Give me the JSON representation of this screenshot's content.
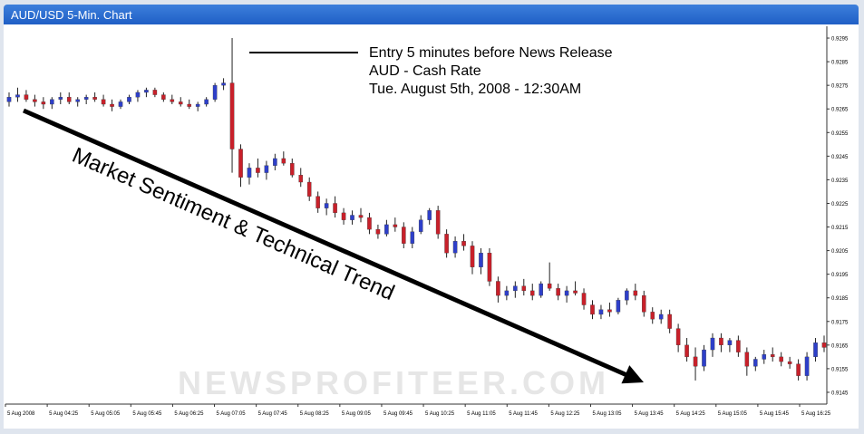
{
  "window": {
    "title": "AUD/USD 5-Min. Chart"
  },
  "annotation": {
    "lines": [
      "Entry 5 minutes before News Release",
      "AUD - Cash Rate",
      "Tue. August 5th, 2008 - 12:30AM"
    ]
  },
  "trend_label": "Market Sentiment & Technical Trend",
  "watermark": "NEWSPROFITEER.COM",
  "colors": {
    "bull": "#2e3fc9",
    "bear": "#c8202a",
    "grid": "#ffffff",
    "text": "#000000"
  },
  "chart_data": {
    "type": "candlestick",
    "title": "AUD/USD 5-Min. Chart",
    "ylim": [
      0.914,
      0.93
    ],
    "y_ticks": [
      "0.9295",
      "0.9285",
      "0.9275",
      "0.9265",
      "0.9255",
      "0.9245",
      "0.9235",
      "0.9225",
      "0.9215",
      "0.9205",
      "0.9195",
      "0.9185",
      "0.9175",
      "0.9165",
      "0.9155",
      "0.9145"
    ],
    "x_ticks": [
      "5 Aug 2008",
      "5 Aug 04:25",
      "5 Aug 05:05",
      "5 Aug 05:45",
      "5 Aug 06:25",
      "5 Aug 07:05",
      "5 Aug 07:45",
      "5 Aug 08:25",
      "5 Aug 09:05",
      "5 Aug 09:45",
      "5 Aug 10:25",
      "5 Aug 11:05",
      "5 Aug 11:45",
      "5 Aug 12:25",
      "5 Aug 13:05",
      "5 Aug 13:45",
      "5 Aug 14:25",
      "5 Aug 15:05",
      "5 Aug 15:45",
      "5 Aug 16:25"
    ],
    "ohlc": [
      [
        0.9268,
        0.9272,
        0.9266,
        0.927
      ],
      [
        0.927,
        0.9274,
        0.9268,
        0.9271
      ],
      [
        0.9271,
        0.9273,
        0.9268,
        0.9269
      ],
      [
        0.9269,
        0.9271,
        0.9266,
        0.9268
      ],
      [
        0.9268,
        0.927,
        0.9265,
        0.9267
      ],
      [
        0.9267,
        0.927,
        0.9265,
        0.9269
      ],
      [
        0.9269,
        0.9272,
        0.9267,
        0.927
      ],
      [
        0.927,
        0.9272,
        0.9267,
        0.9268
      ],
      [
        0.9268,
        0.927,
        0.9266,
        0.9269
      ],
      [
        0.9269,
        0.9271,
        0.9267,
        0.927
      ],
      [
        0.927,
        0.9272,
        0.9268,
        0.9269
      ],
      [
        0.9269,
        0.9271,
        0.9266,
        0.9267
      ],
      [
        0.9267,
        0.9269,
        0.9264,
        0.9266
      ],
      [
        0.9266,
        0.9269,
        0.9265,
        0.9268
      ],
      [
        0.9268,
        0.9271,
        0.9267,
        0.927
      ],
      [
        0.927,
        0.9273,
        0.9268,
        0.9272
      ],
      [
        0.9272,
        0.9274,
        0.927,
        0.9273
      ],
      [
        0.9273,
        0.9274,
        0.927,
        0.9271
      ],
      [
        0.9271,
        0.9272,
        0.9268,
        0.9269
      ],
      [
        0.9269,
        0.9271,
        0.9267,
        0.9268
      ],
      [
        0.9268,
        0.927,
        0.9266,
        0.9267
      ],
      [
        0.9267,
        0.9269,
        0.9265,
        0.9266
      ],
      [
        0.9266,
        0.9268,
        0.9264,
        0.9267
      ],
      [
        0.9267,
        0.927,
        0.9266,
        0.9269
      ],
      [
        0.9269,
        0.9276,
        0.9268,
        0.9275
      ],
      [
        0.9275,
        0.9278,
        0.9273,
        0.9276
      ],
      [
        0.9276,
        0.9295,
        0.9238,
        0.9248
      ],
      [
        0.9248,
        0.925,
        0.9232,
        0.9236
      ],
      [
        0.9236,
        0.9242,
        0.9233,
        0.924
      ],
      [
        0.924,
        0.9244,
        0.9236,
        0.9238
      ],
      [
        0.9238,
        0.9243,
        0.9235,
        0.9241
      ],
      [
        0.9241,
        0.9246,
        0.9239,
        0.9244
      ],
      [
        0.9244,
        0.9247,
        0.9241,
        0.9242
      ],
      [
        0.9242,
        0.9244,
        0.9236,
        0.9237
      ],
      [
        0.9237,
        0.924,
        0.9232,
        0.9234
      ],
      [
        0.9234,
        0.9236,
        0.9226,
        0.9228
      ],
      [
        0.9228,
        0.923,
        0.9221,
        0.9223
      ],
      [
        0.9223,
        0.9227,
        0.922,
        0.9225
      ],
      [
        0.9225,
        0.9228,
        0.9219,
        0.9221
      ],
      [
        0.9221,
        0.9223,
        0.9216,
        0.9218
      ],
      [
        0.9218,
        0.9222,
        0.9216,
        0.922
      ],
      [
        0.922,
        0.9223,
        0.9217,
        0.9219
      ],
      [
        0.9219,
        0.9221,
        0.9212,
        0.9214
      ],
      [
        0.9214,
        0.9216,
        0.921,
        0.9212
      ],
      [
        0.9212,
        0.9218,
        0.9211,
        0.9216
      ],
      [
        0.9216,
        0.9219,
        0.9213,
        0.9215
      ],
      [
        0.9215,
        0.9217,
        0.9206,
        0.9208
      ],
      [
        0.9208,
        0.9215,
        0.9206,
        0.9213
      ],
      [
        0.9213,
        0.922,
        0.9212,
        0.9218
      ],
      [
        0.9218,
        0.9223,
        0.9216,
        0.9222
      ],
      [
        0.9222,
        0.9224,
        0.921,
        0.9212
      ],
      [
        0.9212,
        0.9214,
        0.9202,
        0.9204
      ],
      [
        0.9204,
        0.9211,
        0.9202,
        0.9209
      ],
      [
        0.9209,
        0.9212,
        0.9205,
        0.9207
      ],
      [
        0.9207,
        0.9209,
        0.9195,
        0.9198
      ],
      [
        0.9198,
        0.9206,
        0.9195,
        0.9204
      ],
      [
        0.9204,
        0.9206,
        0.919,
        0.9192
      ],
      [
        0.9192,
        0.9194,
        0.9183,
        0.9186
      ],
      [
        0.9186,
        0.919,
        0.9184,
        0.9188
      ],
      [
        0.9188,
        0.9192,
        0.9185,
        0.919
      ],
      [
        0.919,
        0.9193,
        0.9186,
        0.9188
      ],
      [
        0.9188,
        0.9191,
        0.9184,
        0.9186
      ],
      [
        0.9186,
        0.9192,
        0.9185,
        0.9191
      ],
      [
        0.9191,
        0.92,
        0.9188,
        0.9189
      ],
      [
        0.9189,
        0.9191,
        0.9184,
        0.9186
      ],
      [
        0.9186,
        0.919,
        0.9183,
        0.9188
      ],
      [
        0.9188,
        0.9192,
        0.9186,
        0.9187
      ],
      [
        0.9187,
        0.9189,
        0.918,
        0.9182
      ],
      [
        0.9182,
        0.9184,
        0.9176,
        0.9178
      ],
      [
        0.9178,
        0.9182,
        0.9176,
        0.918
      ],
      [
        0.918,
        0.9183,
        0.9177,
        0.9179
      ],
      [
        0.9179,
        0.9185,
        0.9178,
        0.9184
      ],
      [
        0.9184,
        0.9189,
        0.9182,
        0.9188
      ],
      [
        0.9188,
        0.9191,
        0.9184,
        0.9186
      ],
      [
        0.9186,
        0.9188,
        0.9177,
        0.9179
      ],
      [
        0.9179,
        0.9181,
        0.9174,
        0.9176
      ],
      [
        0.9176,
        0.918,
        0.9174,
        0.9178
      ],
      [
        0.9178,
        0.918,
        0.917,
        0.9172
      ],
      [
        0.9172,
        0.9174,
        0.9162,
        0.9165
      ],
      [
        0.9165,
        0.9168,
        0.9158,
        0.916
      ],
      [
        0.916,
        0.9164,
        0.915,
        0.9156
      ],
      [
        0.9156,
        0.9165,
        0.9154,
        0.9163
      ],
      [
        0.9163,
        0.917,
        0.916,
        0.9168
      ],
      [
        0.9168,
        0.917,
        0.9162,
        0.9165
      ],
      [
        0.9165,
        0.9168,
        0.9162,
        0.9167
      ],
      [
        0.9167,
        0.9169,
        0.916,
        0.9162
      ],
      [
        0.9162,
        0.9164,
        0.9152,
        0.9156
      ],
      [
        0.9156,
        0.916,
        0.9154,
        0.9159
      ],
      [
        0.9159,
        0.9163,
        0.9157,
        0.9161
      ],
      [
        0.9161,
        0.9164,
        0.9158,
        0.916
      ],
      [
        0.916,
        0.9162,
        0.9156,
        0.9158
      ],
      [
        0.9158,
        0.916,
        0.9155,
        0.9157
      ],
      [
        0.9157,
        0.9159,
        0.915,
        0.9152
      ],
      [
        0.9152,
        0.9162,
        0.915,
        0.916
      ],
      [
        0.916,
        0.9168,
        0.9158,
        0.9166
      ],
      [
        0.9166,
        0.9169,
        0.9162,
        0.9164
      ]
    ]
  }
}
